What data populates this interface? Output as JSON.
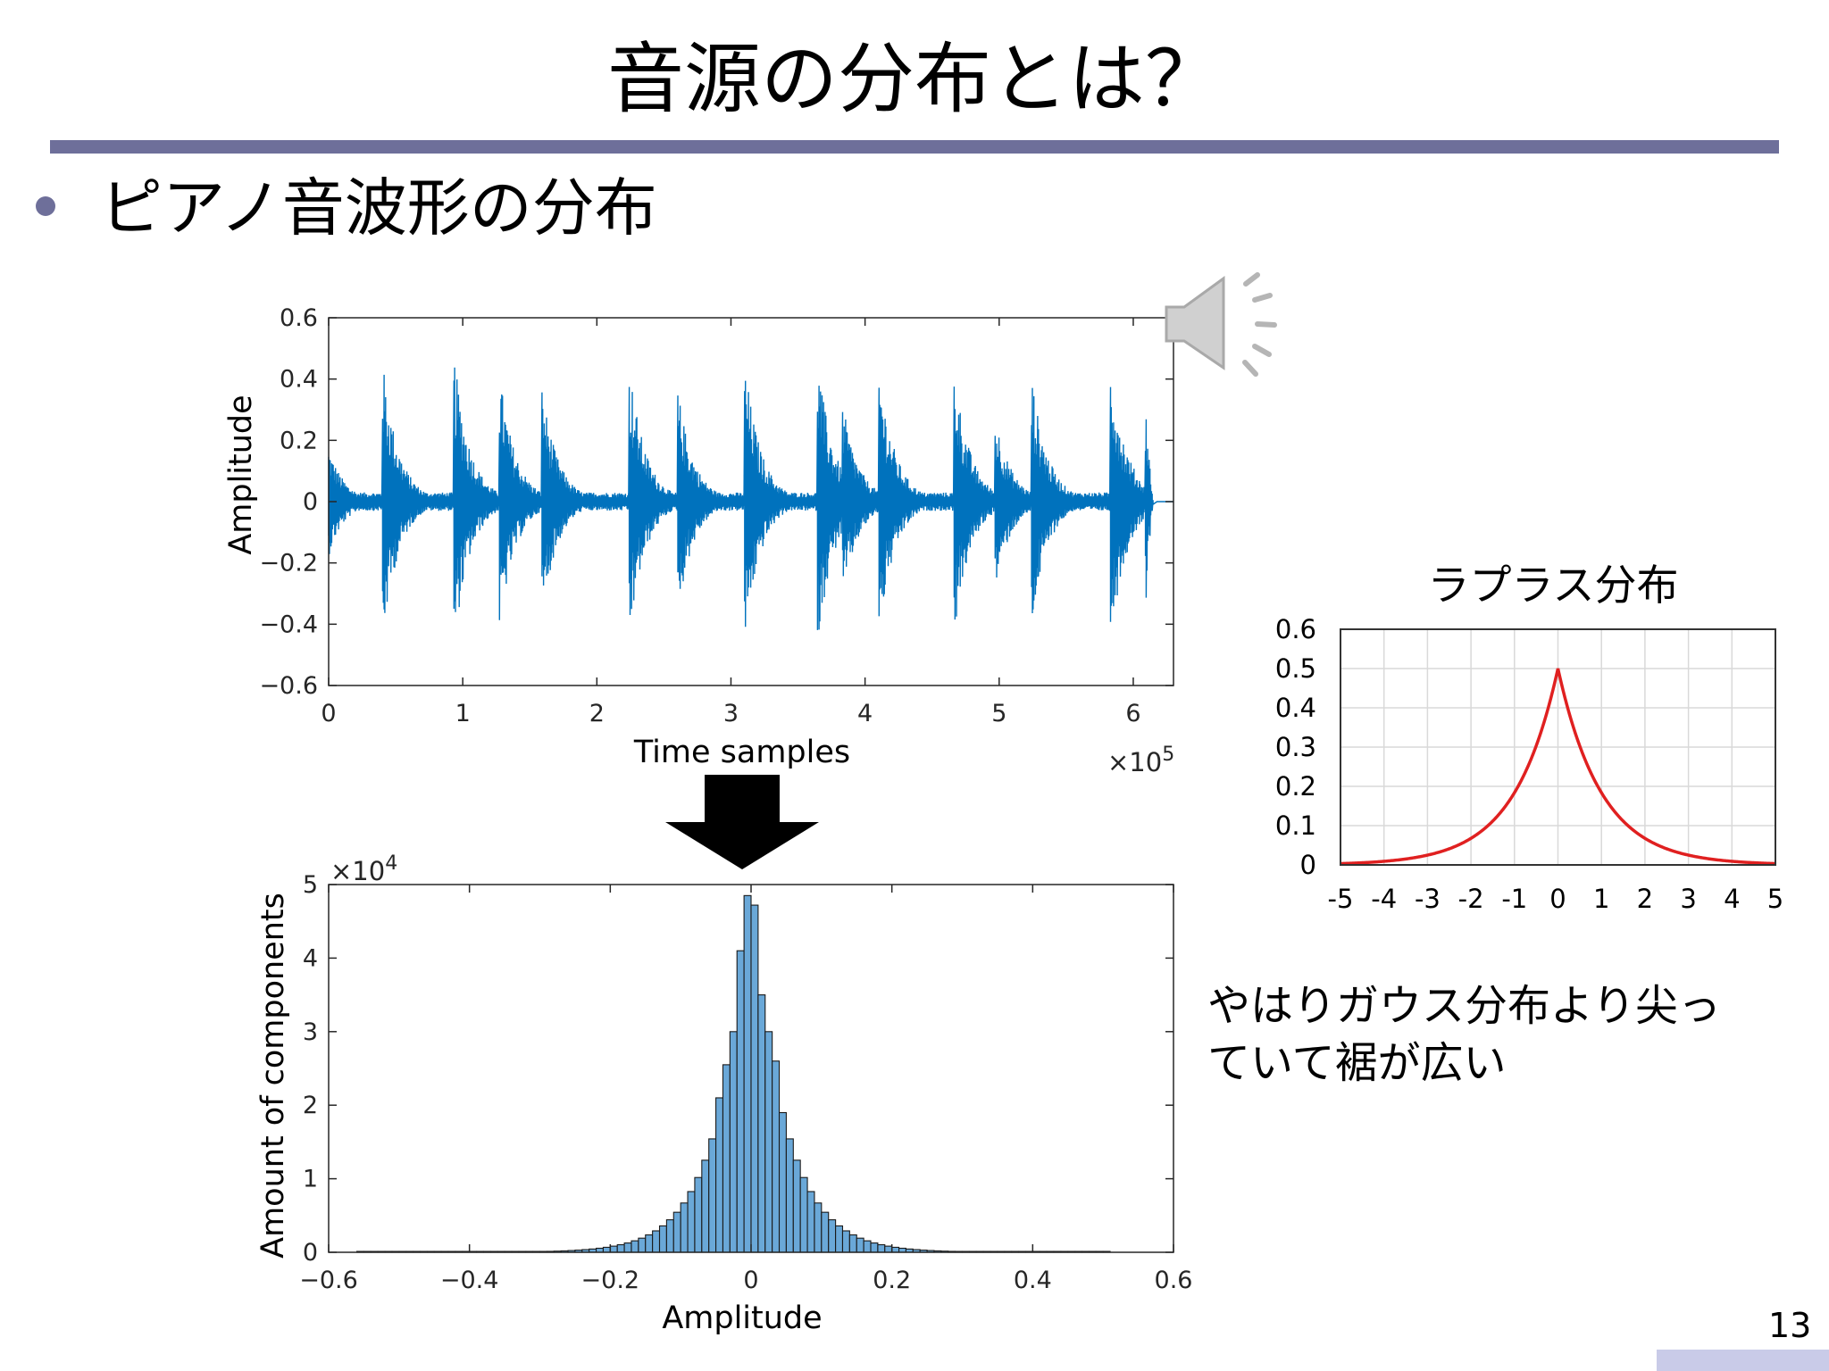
{
  "slide": {
    "title": "音源の分布とは？",
    "bullet": "ピアノ音波形の分布",
    "remark": "やはりガウス分布より尖っ\nていて裾が広い",
    "page_number": "13"
  },
  "icons": {
    "speaker": "speaker-icon"
  },
  "colors": {
    "title_rule": "#6e6f9a",
    "waveform": "#0072bd",
    "histogram_fill": "#6aa8d8",
    "laplace_curve": "#e02020",
    "grid": "#d9d9d9"
  },
  "chart_data": [
    {
      "id": "waveform",
      "type": "line",
      "title": "",
      "xlabel": "Time samples",
      "ylabel": "Amplitude",
      "x_multiplier": "×10^5",
      "xlim": [
        0,
        6.3
      ],
      "ylim": [
        -0.6,
        0.6
      ],
      "xticks": [
        0,
        1,
        2,
        3,
        4,
        5,
        6
      ],
      "xtick_labels": [
        "0",
        "1",
        "2",
        "3",
        "4",
        "5",
        "6"
      ],
      "yticks": [
        0.6,
        0.4,
        0.2,
        0,
        -0.2,
        -0.4,
        -0.6
      ],
      "ytick_labels": [
        "0.6",
        "0.4",
        "0.2",
        "0",
        "−0.2",
        "−0.4",
        "−0.6"
      ],
      "grid": false,
      "note_onsets": [
        {
          "x": 0.0,
          "peak": 0.18
        },
        {
          "x": 0.4,
          "peak": 0.47
        },
        {
          "x": 0.93,
          "peak": 0.5
        },
        {
          "x": 1.27,
          "peak": 0.44
        },
        {
          "x": 1.59,
          "peak": 0.38
        },
        {
          "x": 2.24,
          "peak": 0.46
        },
        {
          "x": 2.6,
          "peak": 0.38
        },
        {
          "x": 3.1,
          "peak": 0.47
        },
        {
          "x": 3.64,
          "peak": 0.5
        },
        {
          "x": 3.83,
          "peak": 0.33
        },
        {
          "x": 4.1,
          "peak": 0.46
        },
        {
          "x": 4.66,
          "peak": 0.46
        },
        {
          "x": 4.97,
          "peak": 0.29
        },
        {
          "x": 5.24,
          "peak": 0.42
        },
        {
          "x": 5.83,
          "peak": 0.47
        },
        {
          "x": 6.09,
          "peak": 0.5
        }
      ],
      "signal_end": 6.15
    },
    {
      "id": "histogram",
      "type": "bar",
      "title": "",
      "xlabel": "Amplitude",
      "ylabel": "Amount of components",
      "y_multiplier": "×10^4",
      "xlim": [
        -0.6,
        0.6
      ],
      "ylim": [
        0,
        5
      ],
      "xticks": [
        -0.6,
        -0.4,
        -0.2,
        0,
        0.2,
        0.4,
        0.6
      ],
      "xtick_labels": [
        "−0.6",
        "−0.4",
        "−0.2",
        "0",
        "0.2",
        "0.4",
        "0.6"
      ],
      "yticks": [
        0,
        1,
        2,
        3,
        4,
        5
      ],
      "ytick_labels": [
        "0",
        "1",
        "2",
        "3",
        "4",
        "5"
      ],
      "grid": false,
      "bin_width": 0.01,
      "bin_range": [
        -0.56,
        0.51
      ],
      "bins": [
        {
          "center": -0.005,
          "value": 4.85
        },
        {
          "center": 0.005,
          "value": 4.72
        },
        {
          "center": -0.015,
          "value": 4.1
        },
        {
          "center": 0.015,
          "value": 3.5
        },
        {
          "center": -0.025,
          "value": 3.0
        },
        {
          "center": 0.025,
          "value": 3.0
        },
        {
          "center": 0.035,
          "value": 2.6
        },
        {
          "center": -0.035,
          "value": 2.55
        },
        {
          "center": -0.045,
          "value": 2.1
        }
      ],
      "shape": "laplacian",
      "scale_b": 0.048
    },
    {
      "id": "laplace",
      "type": "line",
      "title": "ラプラス分布",
      "xlabel": "",
      "ylabel": "",
      "xlim": [
        -5,
        5
      ],
      "ylim": [
        0,
        0.6
      ],
      "xticks": [
        -5,
        -4,
        -3,
        -2,
        -1,
        0,
        1,
        2,
        3,
        4,
        5
      ],
      "xtick_labels": [
        "-5",
        "-4",
        "-3",
        "-2",
        "-1",
        "0",
        "1",
        "2",
        "3",
        "4",
        "5"
      ],
      "yticks": [
        0,
        0.1,
        0.2,
        0.3,
        0.4,
        0.5,
        0.6
      ],
      "ytick_labels": [
        "0",
        "0.1",
        "0.2",
        "0.3",
        "0.4",
        "0.5",
        "0.6"
      ],
      "grid": true,
      "series": [
        {
          "function": "0.5*exp(-|x|)",
          "mu": 0,
          "b": 1
        }
      ]
    }
  ]
}
